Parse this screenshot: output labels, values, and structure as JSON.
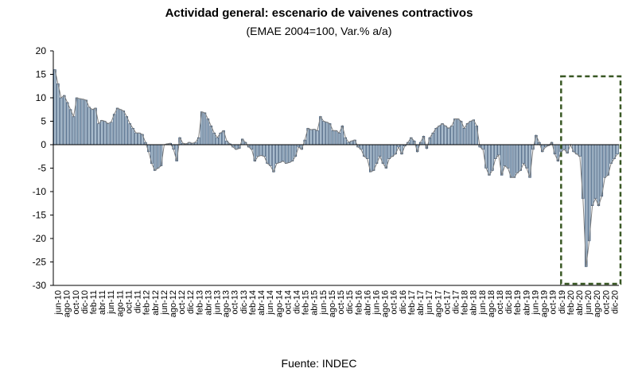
{
  "title": "Actividad general: escenario de vaivenes contractivos",
  "subtitle": "(EMAE 2004=100, Var.% a/a)",
  "source": "Fuente: INDEC",
  "colors": {
    "bar_fill": "#a9bccd",
    "bar_stroke": "#1f3f64",
    "line": "#7f7f7f",
    "highlight_box": "#385723",
    "axis": "#000000"
  },
  "chart_data": {
    "type": "bar",
    "title": "Actividad general: escenario de vaivenes contractivos",
    "subtitle": "(EMAE 2004=100, Var.% a/a)",
    "xlabel": "",
    "ylabel": "",
    "ylim": [
      -30,
      20
    ],
    "yticks": [
      20,
      15,
      10,
      5,
      0,
      -5,
      -10,
      -15,
      -20,
      -25,
      -30
    ],
    "grid": false,
    "x_tick_labels": [
      "jun-10",
      "ago-10",
      "oct-10",
      "dic-10",
      "feb-11",
      "abr-11",
      "jun-11",
      "ago-11",
      "oct-11",
      "dic-11",
      "feb-12",
      "abr-12",
      "jun-12",
      "ago-12",
      "oct-12",
      "dic-12",
      "feb-13",
      "abr-13",
      "jun-13",
      "ago-13",
      "oct-13",
      "dic-13",
      "feb-14",
      "abr-14",
      "jun-14",
      "ago-14",
      "oct-14",
      "dic-14",
      "feb-15",
      "abr-15",
      "jun-15",
      "ago-15",
      "oct-15",
      "dic-15",
      "feb-16",
      "abr-16",
      "jun-16",
      "ago-16",
      "oct-16",
      "dic-16",
      "feb-17",
      "abr-17",
      "jun-17",
      "ago-17",
      "oct-17",
      "dic-17",
      "feb-18",
      "abr-18",
      "jun-18",
      "ago-18",
      "oct-18",
      "dic-18",
      "feb-19",
      "abr-19",
      "jun-19",
      "ago-19",
      "oct-19",
      "dic-19",
      "feb-20",
      "abr-20",
      "jun-20",
      "ago-20",
      "oct-20",
      "dic-20"
    ],
    "series": [
      {
        "start": "jun-10",
        "frequency": "monthly",
        "values": [
          16,
          13,
          10,
          10.5,
          9,
          7.5,
          6,
          10,
          9.8,
          9.7,
          9.5,
          8,
          7.5,
          7.8,
          4.5,
          5.2,
          5,
          4.5,
          4.8,
          6.5,
          7.8,
          7.5,
          7.2,
          6,
          4.5,
          3.5,
          2.5,
          2.5,
          2.2,
          0.5,
          -1.5,
          -4,
          -5.5,
          -5,
          -4.5,
          0,
          0.2,
          0.3,
          -1,
          -3.5,
          1.5,
          0.3,
          0.2,
          0.5,
          0.3,
          0.5,
          1.5,
          7,
          6.8,
          5.5,
          4,
          2.5,
          1.5,
          2.5,
          3,
          0.8,
          0.2,
          -0.5,
          -1,
          -0.8,
          1.2,
          0.5,
          -0.5,
          -1,
          -3.5,
          -2.5,
          -2.3,
          -2.5,
          -4,
          -4.5,
          -5.8,
          -4,
          -3.8,
          -3.5,
          -4,
          -3.8,
          -3.5,
          -2.5,
          -0.5,
          -1,
          1,
          3.5,
          3.2,
          3.3,
          3,
          6,
          5,
          4.8,
          4.5,
          3,
          3,
          2.5,
          4,
          1.5,
          0.5,
          0.8,
          1,
          -0.5,
          -1,
          -2.5,
          -3,
          -5.8,
          -5.5,
          -4,
          -2.5,
          -4,
          -5,
          -3,
          -2.5,
          -2,
          -0.5,
          -2,
          -0.3,
          0.5,
          1.5,
          0.8,
          -1.5,
          0.5,
          1.8,
          -0.8,
          1.5,
          2.5,
          3.5,
          4,
          4.5,
          4,
          3.5,
          4,
          5.5,
          5.5,
          5,
          3.5,
          4.5,
          5,
          5.3,
          4,
          -0.5,
          -1,
          -5,
          -6.5,
          -5.5,
          -3,
          -2.2,
          -6.5,
          -4.5,
          -5,
          -7,
          -7,
          -6,
          -5.5,
          -4,
          -5,
          -7,
          -1,
          2,
          0.5,
          -1.5,
          -0.5,
          -0.2,
          0.5,
          -2,
          -3.5,
          -1.5,
          -1,
          -1.8,
          0,
          -1.5,
          -2,
          -2.5,
          -11.5,
          -26,
          -20.5,
          -13,
          -11.5,
          -13,
          -11,
          -7,
          -6.5,
          -4,
          -3,
          -2
        ]
      }
    ],
    "highlight_box": {
      "from": "feb-20",
      "to": "dic-20",
      "style": "dashed"
    }
  }
}
